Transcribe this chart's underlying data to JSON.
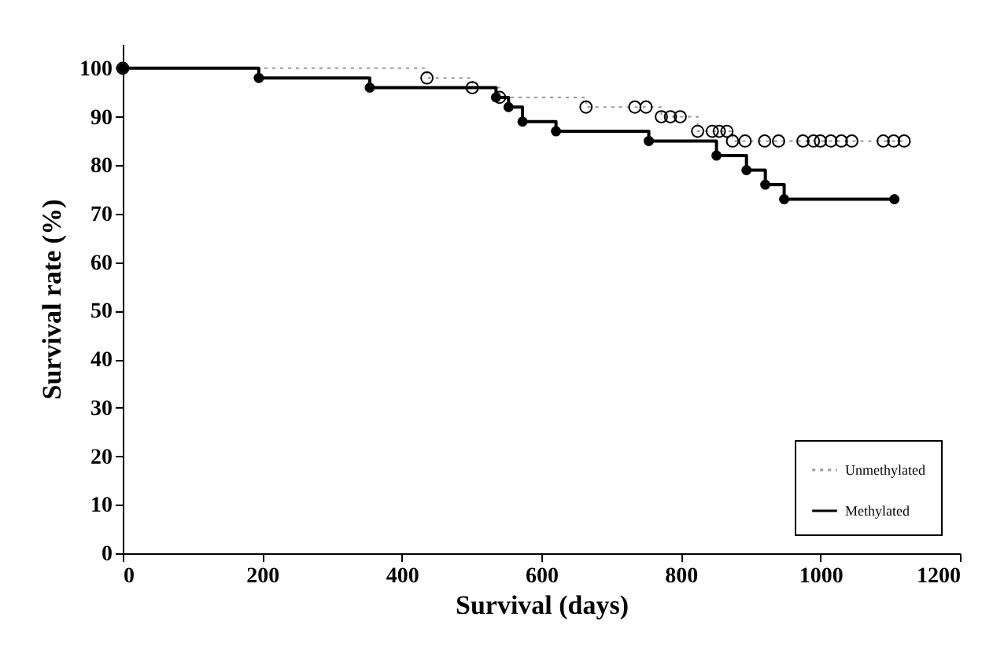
{
  "chart_data": {
    "type": "step",
    "xlabel": "Survival (days)",
    "ylabel": "Survival rate (%)",
    "xlim": [
      0,
      1200
    ],
    "xticks": [
      0,
      200,
      400,
      600,
      800,
      1000,
      1200
    ],
    "ylim": [
      0,
      105
    ],
    "yticks": [
      0,
      10,
      20,
      30,
      40,
      50,
      60,
      70,
      80,
      90,
      100
    ],
    "grid": false,
    "legend": "bottom right",
    "marker": "circle",
    "series": [
      {
        "name": "Unmethylated",
        "color": "#999999",
        "line_style": "dotted",
        "x": [
          0,
          436,
          501,
          540,
          664,
          734,
          750,
          772,
          785,
          799,
          824,
          845,
          855,
          866,
          874,
          892,
          920,
          940,
          975,
          990,
          1000,
          1015,
          1030,
          1045,
          1090,
          1105,
          1120
        ],
        "values": [
          100,
          98,
          96,
          94,
          92,
          92,
          92,
          90,
          90,
          90,
          87,
          87,
          87,
          87,
          85,
          85,
          85,
          85,
          85,
          85,
          85,
          85,
          85,
          85,
          85,
          85,
          85
        ]
      },
      {
        "name": "Methylated",
        "color": "#000000",
        "line_style": "solid",
        "x": [
          0,
          195,
          354,
          535,
          553,
          573,
          621,
          754,
          851,
          894,
          921,
          948,
          1106
        ],
        "values": [
          100,
          98,
          96,
          94,
          92,
          89,
          87,
          85,
          82,
          79,
          76,
          73,
          73
        ]
      }
    ]
  }
}
